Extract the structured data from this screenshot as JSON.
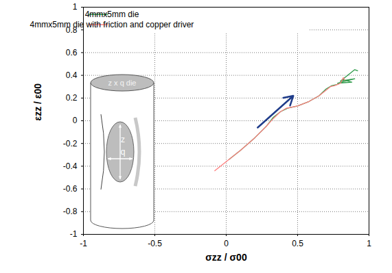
{
  "chart_data": {
    "type": "line",
    "x_label": "σzz / σ00",
    "y_label": "εzz / ε00",
    "xlim": [
      -1,
      1
    ],
    "ylim": [
      -1,
      1
    ],
    "xticks": [
      -1,
      -0.5,
      0,
      0.5,
      1
    ],
    "yticks": [
      -1,
      -0.8,
      -0.6,
      -0.4,
      -0.2,
      0,
      0.2,
      0.4,
      0.6,
      0.8,
      1
    ],
    "grid": true,
    "legend": "top-left",
    "annotations": [
      "z x q die",
      "z",
      "q"
    ],
    "series": [
      {
        "name": "4mmx5mm die",
        "color": "#2e9b4a",
        "x": [
          0.02,
          0.1,
          0.2,
          0.28,
          0.33,
          0.38,
          0.43,
          0.5,
          0.58,
          0.65,
          0.7,
          0.74,
          0.78,
          0.82,
          0.88,
          0.78,
          0.9,
          0.8,
          0.86,
          0.9,
          0.92
        ],
        "values": [
          -0.34,
          -0.26,
          -0.15,
          -0.05,
          0.03,
          0.08,
          0.11,
          0.13,
          0.17,
          0.22,
          0.28,
          0.31,
          0.32,
          0.36,
          0.34,
          0.33,
          0.37,
          0.35,
          0.41,
          0.45,
          0.44
        ]
      },
      {
        "name": "4mmx5mm die with friction and copper driver",
        "color": "#ff7f7f",
        "x": [
          -0.08,
          0,
          0.1,
          0.2,
          0.28,
          0.33,
          0.38,
          0.42,
          0.5,
          0.58,
          0.65,
          0.7,
          0.73,
          0.76,
          0.8,
          0.82,
          0.83
        ],
        "values": [
          -0.44,
          -0.36,
          -0.26,
          -0.15,
          -0.05,
          0.02,
          0.08,
          0.11,
          0.13,
          0.17,
          0.22,
          0.27,
          0.3,
          0.31,
          0.33,
          0.38,
          0.36
        ]
      }
    ]
  }
}
